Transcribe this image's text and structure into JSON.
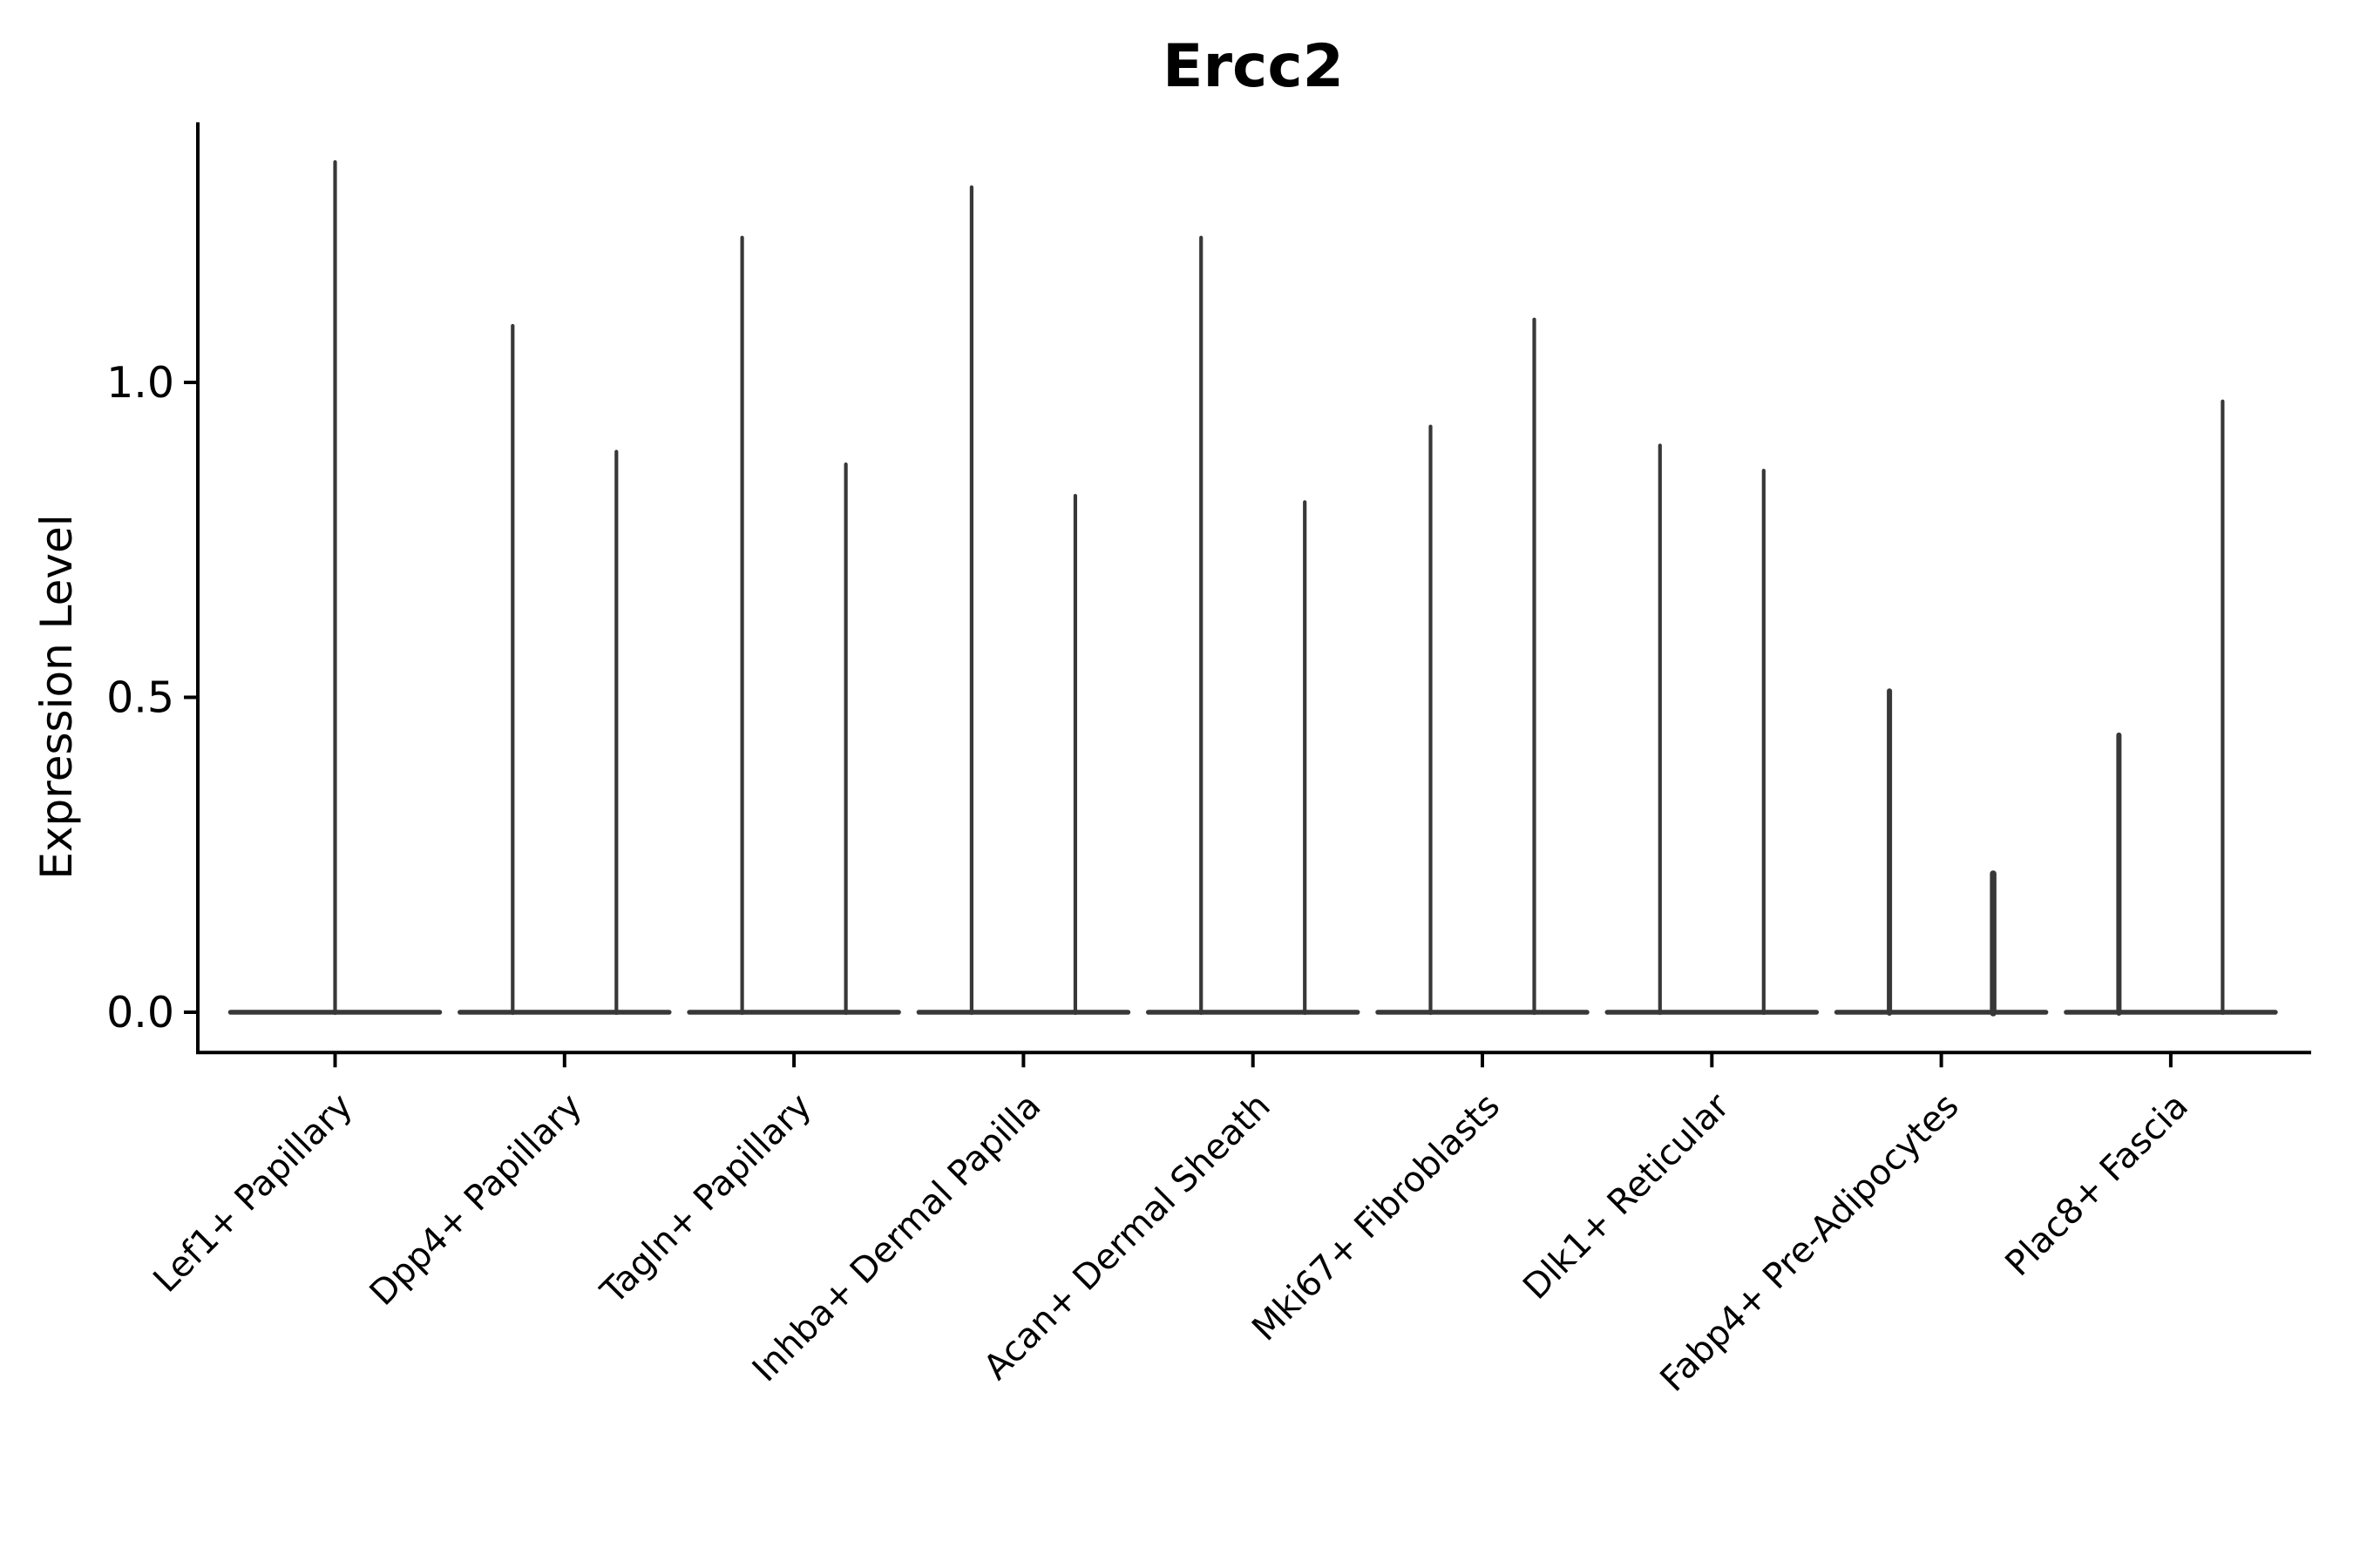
{
  "chart_data": {
    "type": "violin",
    "title": "Ercc2",
    "xlabel": "",
    "ylabel": "Expression Level",
    "categories": [
      "Lef1+ Papillary",
      "Dpp4+ Papillary",
      "Tagln+ Papillary",
      "Inhba+ Dermal Papilla",
      "Acan+ Dermal Sheath",
      "Mki67+ Fibroblasts",
      "Dlk1+ Reticular",
      "Fabp4+ Pre-Adipocytes",
      "Plac8+ Fascia"
    ],
    "violins": [
      {
        "category": "Lef1+ Papillary",
        "spikes": [
          {
            "offset": 0,
            "max": 1.35
          }
        ]
      },
      {
        "category": "Dpp4+ Papillary",
        "spikes": [
          {
            "offset": -1,
            "max": 1.09
          },
          {
            "offset": 1,
            "max": 0.89
          }
        ]
      },
      {
        "category": "Tagln+ Papillary",
        "spikes": [
          {
            "offset": -1,
            "max": 1.23
          },
          {
            "offset": 1,
            "max": 0.87
          }
        ]
      },
      {
        "category": "Inhba+ Dermal Papilla",
        "spikes": [
          {
            "offset": -1,
            "max": 1.31
          },
          {
            "offset": 1,
            "max": 0.82
          }
        ]
      },
      {
        "category": "Acan+ Dermal Sheath",
        "spikes": [
          {
            "offset": -1,
            "max": 1.23
          },
          {
            "offset": 1,
            "max": 0.81
          }
        ]
      },
      {
        "category": "Mki67+ Fibroblasts",
        "spikes": [
          {
            "offset": -1,
            "max": 0.93
          },
          {
            "offset": 1,
            "max": 1.1
          }
        ]
      },
      {
        "category": "Dlk1+ Reticular",
        "spikes": [
          {
            "offset": -1,
            "max": 0.9
          },
          {
            "offset": 1,
            "max": 0.86
          }
        ]
      },
      {
        "category": "Fabp4+ Pre-Adipocytes",
        "spikes": [
          {
            "offset": -1,
            "max": 0.51
          },
          {
            "offset": 1,
            "max": 0.22
          }
        ]
      },
      {
        "category": "Plac8+ Fascia",
        "spikes": [
          {
            "offset": -1,
            "max": 0.44
          },
          {
            "offset": 1,
            "max": 0.97
          }
        ]
      }
    ],
    "baseline_value": 0.0,
    "yticks": [
      0.0,
      0.5,
      1.0
    ],
    "ylim": [
      -0.064,
      1.413
    ],
    "axis": {
      "spines": [
        "left",
        "bottom"
      ],
      "grid": false,
      "x_tick_rotation": 45,
      "legend": "none"
    },
    "colors": {
      "violin": "#383838",
      "axis": "#000000",
      "text": "#000000",
      "background": "#ffffff"
    }
  }
}
